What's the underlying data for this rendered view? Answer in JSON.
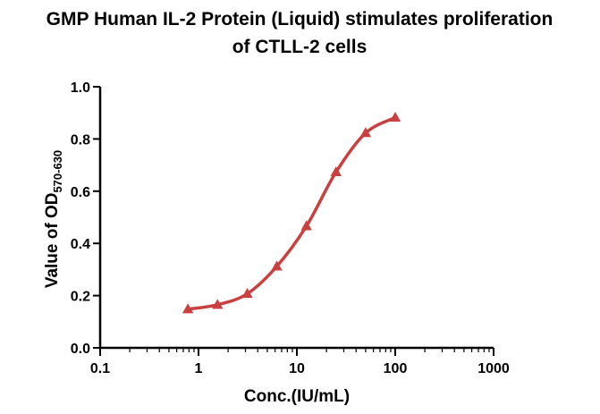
{
  "chart_data": {
    "type": "line",
    "title_lines": [
      "GMP Human IL-2 Protein (Liquid) stimulates proliferation",
      "of CTLL-2 cells"
    ],
    "xlabel": "Conc.(IU/mL)",
    "ylabel_main": "Value of OD",
    "ylabel_sub": "570-630",
    "xscale": "log",
    "xlim": [
      0.1,
      1000
    ],
    "ylim": [
      0.0,
      1.0
    ],
    "x_ticks": [
      0.1,
      1,
      10,
      100,
      1000
    ],
    "x_tick_labels": [
      "0.1",
      "1",
      "10",
      "100",
      "1000"
    ],
    "y_ticks": [
      0.0,
      0.2,
      0.4,
      0.6,
      0.8,
      1.0
    ],
    "y_tick_labels": [
      "0.0",
      "0.2",
      "0.4",
      "0.6",
      "0.8",
      "1.0"
    ],
    "grid": false,
    "series": [
      {
        "x": [
          0.78,
          1.56,
          3.13,
          6.25,
          12.5,
          25,
          50,
          100
        ],
        "y": [
          0.148,
          0.165,
          0.207,
          0.312,
          0.466,
          0.673,
          0.823,
          0.882
        ],
        "marker": "triangle",
        "color": "#c8403f"
      }
    ]
  }
}
